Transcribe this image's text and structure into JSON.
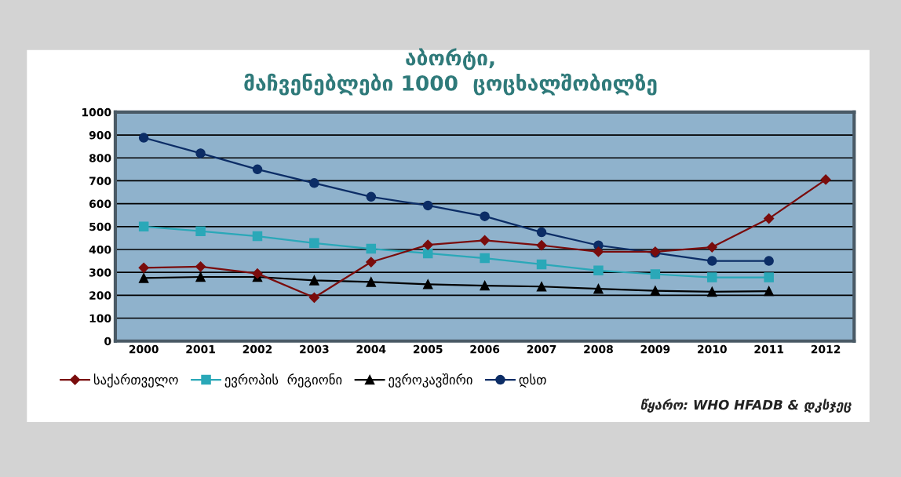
{
  "chart_data": {
    "type": "line",
    "title": "აბორტი,\nმაჩვენებლები 1000  ცოცხალშობილზე",
    "categories": [
      "2000",
      "2001",
      "2002",
      "2003",
      "2004",
      "2005",
      "2006",
      "2007",
      "2008",
      "2009",
      "2010",
      "2011",
      "2012"
    ],
    "series": [
      {
        "name": "საქართველო",
        "color": "#7a0c0c",
        "marker": "diamond",
        "values": [
          320,
          325,
          295,
          190,
          345,
          420,
          440,
          418,
          390,
          390,
          410,
          535,
          705
        ]
      },
      {
        "name": "ევროპის  რეგიონი",
        "color": "#2aa8b8",
        "marker": "square",
        "values": [
          500,
          480,
          458,
          428,
          403,
          383,
          362,
          335,
          308,
          292,
          278,
          278,
          null
        ]
      },
      {
        "name": "ევროკავშირი",
        "color": "#000000",
        "marker": "triangle",
        "values": [
          275,
          280,
          280,
          265,
          258,
          248,
          242,
          238,
          228,
          220,
          215,
          218,
          null
        ]
      },
      {
        "name": "დსთ",
        "color": "#0c2d66",
        "marker": "circle",
        "values": [
          888,
          820,
          750,
          690,
          630,
          592,
          545,
          475,
          418,
          385,
          350,
          350,
          null
        ]
      }
    ],
    "ylim": [
      0,
      1000
    ],
    "yticks": [
      0,
      100,
      200,
      300,
      400,
      500,
      600,
      700,
      800,
      900,
      1000
    ],
    "grid": "y",
    "legend": "bottom",
    "annotations": [
      "წყარო: WHO HFADB & დკსჯეც"
    ]
  }
}
